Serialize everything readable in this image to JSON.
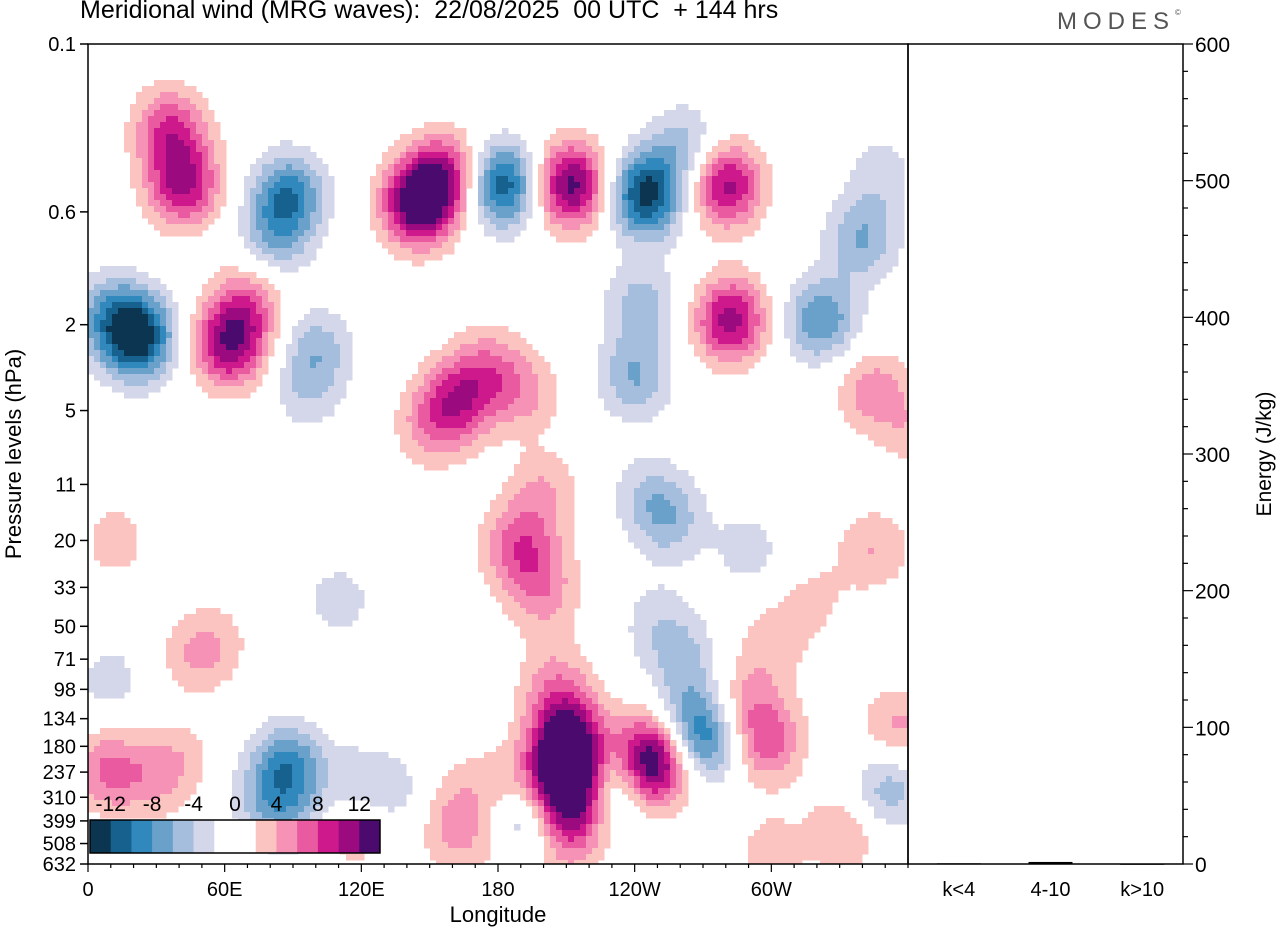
{
  "title": "Meridional wind (MRG waves):  22/08/2025  00 UTC  + 144 hrs",
  "brand": "MODES",
  "brand_mark": "©",
  "chart_data": [
    {
      "type": "heatmap",
      "title": "Meridional wind (MRG waves)",
      "xlabel": "Longitude",
      "ylabel": "Pressure levels (hPa)",
      "x_ticks": [
        "0",
        "60E",
        "120E",
        "180",
        "120W",
        "60W"
      ],
      "x_tick_values": [
        0,
        60,
        120,
        180,
        240,
        300
      ],
      "xlim": [
        0,
        360
      ],
      "y_ticks": [
        "0.1",
        "0.6",
        "2",
        "5",
        "11",
        "20",
        "33",
        "50",
        "71",
        "98",
        "134",
        "180",
        "237",
        "310",
        "399",
        "508",
        "632"
      ],
      "colorbar": {
        "labels": [
          "-12",
          "-8",
          "-4",
          "0",
          "4",
          "8",
          "12"
        ],
        "label_values": [
          -12,
          -8,
          -4,
          0,
          4,
          8,
          12
        ],
        "colors": [
          "#0b3550",
          "#17618f",
          "#3088bd",
          "#6aa1ca",
          "#a6bedd",
          "#d4d6ea",
          "#ffffff",
          "#ffffff",
          "#fbc4c0",
          "#f592b5",
          "#ea5aa1",
          "#ce198d",
          "#9b0a7e",
          "#4a0a6e"
        ]
      },
      "blobs": [
        {
          "lon": 22,
          "lev": 2.3,
          "v": -13
        },
        {
          "lon": 10,
          "lev": 1.8,
          "v": -6
        },
        {
          "lon": 36,
          "lev": 0.25,
          "v": 8
        },
        {
          "lon": 42,
          "lev": 0.45,
          "v": 10
        },
        {
          "lon": 62,
          "lev": 2.5,
          "v": 11
        },
        {
          "lon": 70,
          "lev": 1.6,
          "v": 6
        },
        {
          "lon": 88,
          "lev": 0.5,
          "v": -9
        },
        {
          "lon": 82,
          "lev": 0.8,
          "v": -5
        },
        {
          "lon": 100,
          "lev": 2.6,
          "v": -5
        },
        {
          "lon": 96,
          "lev": 4.2,
          "v": -3
        },
        {
          "lon": 145,
          "lev": 0.55,
          "v": 14
        },
        {
          "lon": 157,
          "lev": 0.4,
          "v": 9
        },
        {
          "lon": 182,
          "lev": 0.45,
          "v": -12
        },
        {
          "lon": 212,
          "lev": 0.45,
          "v": 13
        },
        {
          "lon": 245,
          "lev": 0.5,
          "v": -13
        },
        {
          "lon": 262,
          "lev": 0.3,
          "v": -5
        },
        {
          "lon": 280,
          "lev": 0.45,
          "v": 11
        },
        {
          "lon": 282,
          "lev": 1.9,
          "v": 11
        },
        {
          "lon": 243,
          "lev": 1.6,
          "v": -5
        },
        {
          "lon": 240,
          "lev": 3.5,
          "v": -6
        },
        {
          "lon": 322,
          "lev": 1.9,
          "v": -8
        },
        {
          "lon": 340,
          "lev": 0.8,
          "v": -6
        },
        {
          "lon": 348,
          "lev": 0.4,
          "v": -3
        },
        {
          "lon": 162,
          "lev": 4.5,
          "v": 8
        },
        {
          "lon": 176,
          "lev": 3.2,
          "v": 5
        },
        {
          "lon": 150,
          "lev": 6,
          "v": 4
        },
        {
          "lon": 192,
          "lev": 4.2,
          "v": 4
        },
        {
          "lon": 200,
          "lev": 12,
          "v": 4
        },
        {
          "lon": 188,
          "lev": 21,
          "v": 6
        },
        {
          "lon": 198,
          "lev": 28,
          "v": 3
        },
        {
          "lon": 200,
          "lev": 38,
          "v": 3
        },
        {
          "lon": 205,
          "lev": 90,
          "v": 4
        },
        {
          "lon": 210,
          "lev": 150,
          "v": 9
        },
        {
          "lon": 212,
          "lev": 210,
          "v": 8
        },
        {
          "lon": 210,
          "lev": 270,
          "v": 12
        },
        {
          "lon": 213,
          "lev": 390,
          "v": 5
        },
        {
          "lon": 208,
          "lev": 520,
          "v": 3
        },
        {
          "lon": 183,
          "lev": 280,
          "v": 4
        },
        {
          "lon": 181,
          "lev": 500,
          "v": 3
        },
        {
          "lon": 190,
          "lev": 400,
          "v": -8
        },
        {
          "lon": 231,
          "lev": 260,
          "v": -7
        },
        {
          "lon": 248,
          "lev": 225,
          "v": 11
        },
        {
          "lon": 245,
          "lev": 190,
          "v": 6
        },
        {
          "lon": 271,
          "lev": 170,
          "v": -8
        },
        {
          "lon": 265,
          "lev": 130,
          "v": -4
        },
        {
          "lon": 298,
          "lev": 170,
          "v": 7
        },
        {
          "lon": 288,
          "lev": 110,
          "v": 4
        },
        {
          "lon": 255,
          "lev": 16,
          "v": -5
        },
        {
          "lon": 245,
          "lev": 12,
          "v": -3
        },
        {
          "lon": 250,
          "lev": 48,
          "v": -3
        },
        {
          "lon": 262,
          "lev": 72,
          "v": -4
        },
        {
          "lon": 290,
          "lev": 22,
          "v": -3
        },
        {
          "lon": 345,
          "lev": 22,
          "v": 4
        },
        {
          "lon": 362,
          "lev": 6,
          "v": 3
        },
        {
          "lon": 344,
          "lev": 4,
          "v": 5
        },
        {
          "lon": 300,
          "lev": 60,
          "v": 3
        },
        {
          "lon": 318,
          "lev": 38,
          "v": 2.5
        },
        {
          "lon": 356,
          "lev": 150,
          "v": 5
        },
        {
          "lon": 344,
          "lev": 330,
          "v": -3
        },
        {
          "lon": 333,
          "lev": 440,
          "v": 5
        },
        {
          "lon": 355,
          "lev": 260,
          "v": -4
        },
        {
          "lon": 300,
          "lev": 550,
          "v": 3
        },
        {
          "lon": 88,
          "lev": 220,
          "v": -8
        },
        {
          "lon": 78,
          "lev": 320,
          "v": -4
        },
        {
          "lon": 92,
          "lev": 390,
          "v": -3
        },
        {
          "lon": 8,
          "lev": 230,
          "v": 6
        },
        {
          "lon": 27,
          "lev": 260,
          "v": 3
        },
        {
          "lon": 40,
          "lev": 210,
          "v": 3
        },
        {
          "lon": 120,
          "lev": 260,
          "v": -3
        },
        {
          "lon": 140,
          "lev": 300,
          "v": -2.5
        },
        {
          "lon": 160,
          "lev": 320,
          "v": 3
        },
        {
          "lon": 160,
          "lev": 480,
          "v": 3
        },
        {
          "lon": 115,
          "lev": 480,
          "v": 3
        },
        {
          "lon": 110,
          "lev": 38,
          "v": -3
        },
        {
          "lon": 55,
          "lev": 60,
          "v": 3
        },
        {
          "lon": 12,
          "lev": 20,
          "v": 3
        },
        {
          "lon": 10,
          "lev": 90,
          "v": -3
        },
        {
          "lon": 45,
          "lev": 70,
          "v": 2.5
        }
      ]
    },
    {
      "type": "bar",
      "ylabel": "Energy (J/kg)",
      "categories": [
        "k<4",
        "4-10",
        "k>10"
      ],
      "values": [
        0.5,
        1.5,
        0.3
      ],
      "ylim": [
        0,
        600
      ],
      "y_ticks": [
        "0",
        "100",
        "200",
        "300",
        "400",
        "500",
        "600"
      ],
      "y_tick_values": [
        0,
        100,
        200,
        300,
        400,
        500,
        600
      ]
    }
  ]
}
